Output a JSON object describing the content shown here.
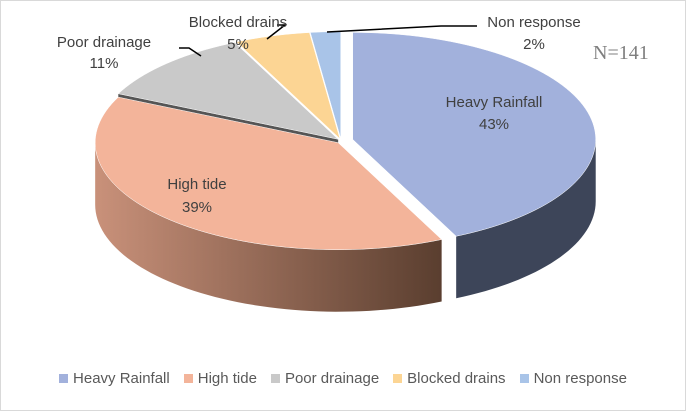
{
  "chart_data": {
    "type": "pie",
    "style": "3d-exploded",
    "annotation": "N=141",
    "slices": [
      {
        "name": "Heavy Rainfall",
        "value": 43,
        "label": "43%",
        "color": "#a2b1dc",
        "side": "#3d4559"
      },
      {
        "name": "High tide",
        "value": 39,
        "label": "39%",
        "color": "#f3b49a",
        "side": "#8c6350"
      },
      {
        "name": "Poor drainage",
        "value": 11,
        "label": "11%",
        "color": "#c9c9c9",
        "side": "#555555"
      },
      {
        "name": "Blocked drains",
        "value": 5,
        "label": "5%",
        "color": "#fcd594",
        "side": "#6b5a3a"
      },
      {
        "name": "Non response",
        "value": 2,
        "label": "2%",
        "color": "#a9c4e8",
        "side": "#4a5a70"
      }
    ],
    "legend_position": "bottom"
  }
}
